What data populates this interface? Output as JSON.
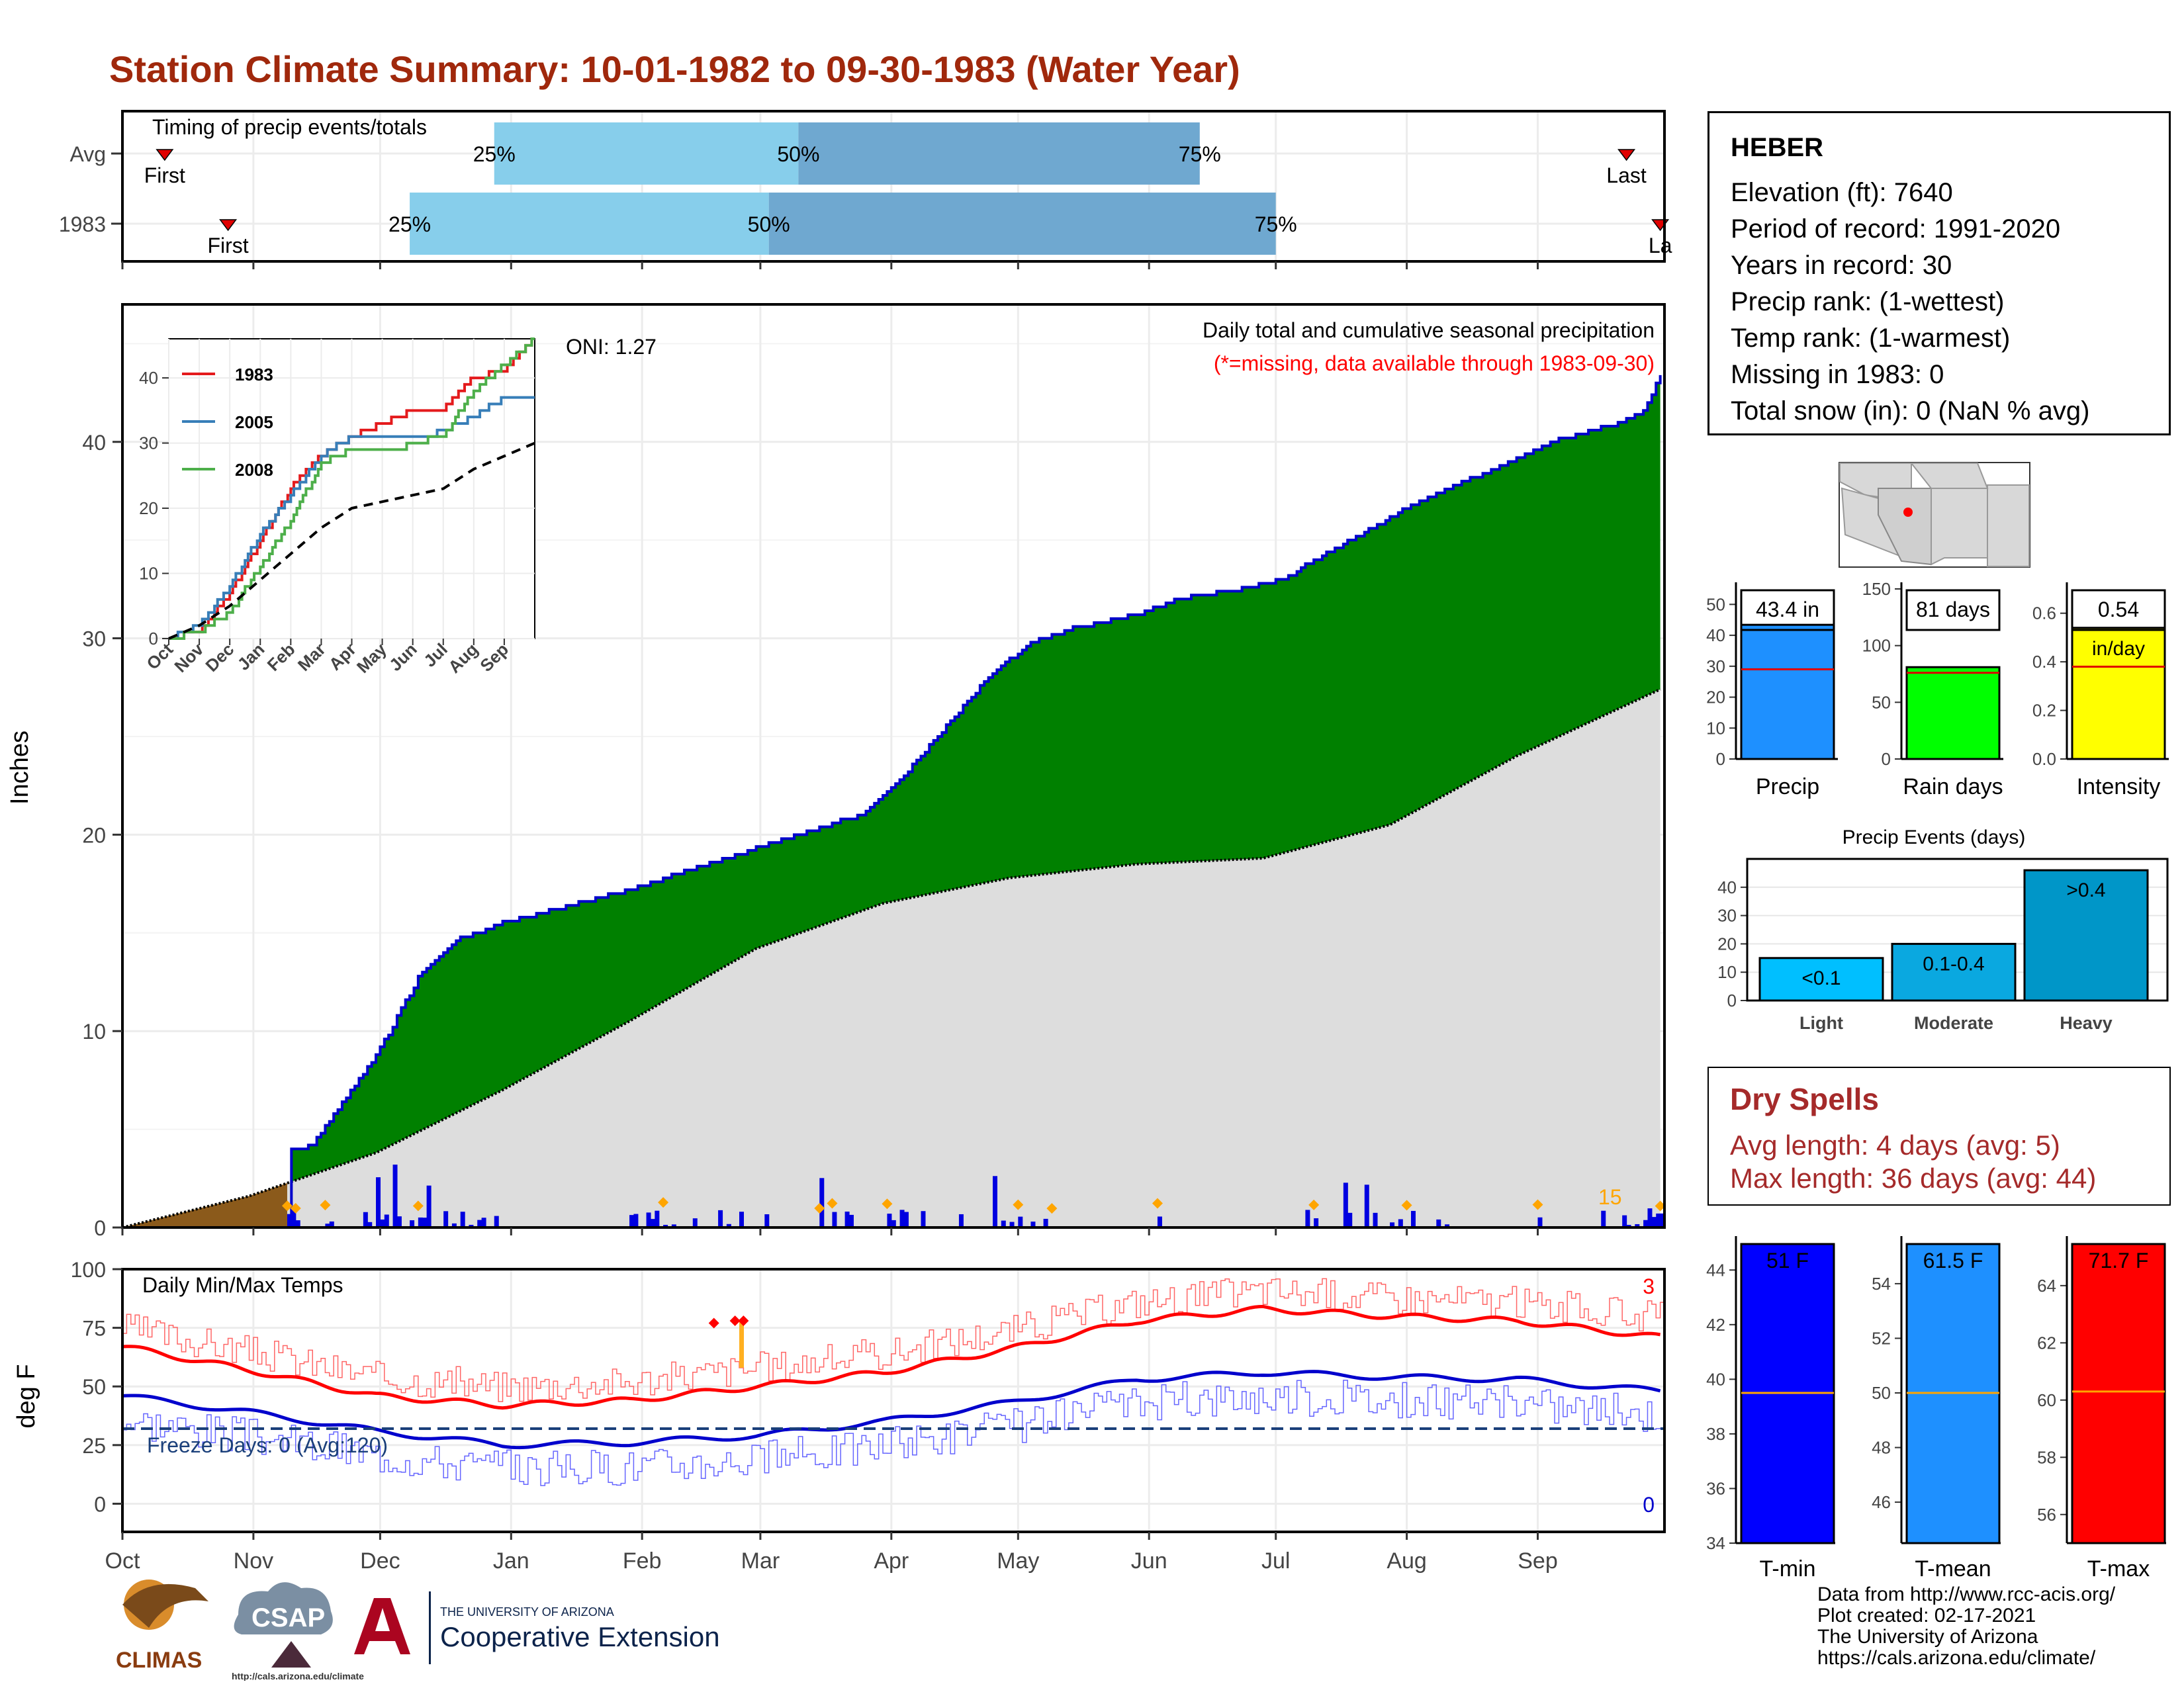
{
  "title": "Station Climate Summary: 10-01-1982 to 09-30-1983 (Water Year)",
  "colors": {
    "title": "#a0280c",
    "precip_cum": "#008000",
    "precip_line": "#0000cc",
    "normal_fill": "#dddddd",
    "tmax": "#ff0000",
    "tmin": "#0000cc",
    "quartile_light": "#87ceeb",
    "quartile_dark": "#6fa8d0",
    "dry_spells": "#a52a2a"
  },
  "timing_panel": {
    "title": "Timing of precip events/totals",
    "rows": [
      {
        "label": "Avg",
        "first_label": "First",
        "last_label": "Last",
        "first_day": 10,
        "last_day": 356,
        "p25_day": 88,
        "p50_day": 160,
        "p75_day": 255,
        "p25_label": "25%",
        "p50_label": "50%",
        "p75_label": "75%"
      },
      {
        "label": "1983",
        "first_label": "First",
        "last_label": "La",
        "first_day": 25,
        "last_day": 364,
        "p25_day": 68,
        "p50_day": 153,
        "p75_day": 273,
        "p25_label": "25%",
        "p50_label": "50%",
        "p75_label": "75%"
      }
    ]
  },
  "precip_panel": {
    "ylabel": "Inches",
    "title": "Daily total and cumulative seasonal precipitation",
    "subtitle": "(*=missing, data available through 1983-09-30)",
    "oni": "ONI: 1.27",
    "corner_value": "15",
    "y_ticks": [
      "0",
      "10",
      "20",
      "30",
      "40"
    ]
  },
  "month_labels": [
    "Oct",
    "Nov",
    "Dec",
    "Jan",
    "Feb",
    "Mar",
    "Apr",
    "May",
    "Jun",
    "Jul",
    "Aug",
    "Sep"
  ],
  "inset": {
    "y_ticks": [
      "0",
      "10",
      "20",
      "30",
      "40"
    ],
    "legend": [
      "1983",
      "2005",
      "2008"
    ],
    "x_labels": [
      "Oct",
      "Nov",
      "Dec",
      "Jan",
      "Feb",
      "Mar",
      "Apr",
      "May",
      "Jun",
      "Jul",
      "Aug",
      "Sep"
    ]
  },
  "temp_panel": {
    "ylabel": "deg F",
    "title": "Daily Min/Max Temps",
    "freeze_text": "Freeze Days: 0 (Avg:120)",
    "count_max": "3",
    "count_min": "0",
    "y_ticks": [
      "0",
      "25",
      "50",
      "75",
      "100"
    ]
  },
  "station": {
    "name": "HEBER",
    "lines": [
      "Elevation (ft): 7640",
      "Period of record: 1991-2020",
      "Years in record: 30",
      "Precip rank:  (1-wettest)",
      "Temp rank:  (1-warmest)",
      "Missing in 1983: 0",
      "Total snow (in): 0 (NaN % avg)"
    ]
  },
  "summary_bars": [
    {
      "label": "Precip",
      "value_text": "43.4 in",
      "value": 43.4,
      "avg": 29,
      "ymax": 55,
      "ticks": [
        "0",
        "10",
        "20",
        "30",
        "40",
        "50"
      ],
      "color": "#1e90ff"
    },
    {
      "label": "Rain days",
      "value_text": "81 days",
      "value": 81,
      "avg": 76,
      "ymax": 150,
      "ticks": [
        "0",
        "50",
        "100",
        "150"
      ],
      "color": "#00ff00"
    },
    {
      "label": "Intensity",
      "value_text": "0.54",
      "value_text2": "in/day",
      "value": 0.54,
      "avg": 0.38,
      "ymax": 0.7,
      "ticks": [
        "0.0",
        "0.2",
        "0.4",
        "0.6"
      ],
      "color": "#ffff00"
    }
  ],
  "events": {
    "title": "Precip Events (days)",
    "ticks": [
      "0",
      "10",
      "20",
      "30",
      "40"
    ],
    "bars": [
      {
        "label": "Light",
        "text": "<0.1",
        "value": 15,
        "color": "#00bfff"
      },
      {
        "label": "Moderate",
        "text": "0.1-0.4",
        "value": 20,
        "color": "#0aa8e0"
      },
      {
        "label": "Heavy",
        "text": ">0.4",
        "value": 46,
        "color": "#0096c8"
      }
    ]
  },
  "dry_spells": {
    "title": "Dry Spells",
    "avg_length": "Avg length: 4 days (avg: 5)",
    "max_length": "Max length: 36 days (avg: 44)"
  },
  "temp_bars": [
    {
      "label": "T-min",
      "value_text": "51 F",
      "value": 51,
      "avg": 39.5,
      "ymin": 34,
      "ymax": 45,
      "ticks": [
        "34",
        "36",
        "38",
        "40",
        "42",
        "44"
      ],
      "color": "#0000ff"
    },
    {
      "label": "T-mean",
      "value_text": "61.5 F",
      "value": 61.5,
      "avg": 50,
      "ymin": 44.5,
      "ymax": 55.5,
      "ticks": [
        "46",
        "48",
        "50",
        "52",
        "54"
      ],
      "color": "#1e90ff"
    },
    {
      "label": "T-max",
      "value_text": "71.7 F",
      "value": 71.7,
      "avg": 60.3,
      "ymin": 55,
      "ymax": 65.5,
      "ticks": [
        "56",
        "58",
        "60",
        "62",
        "64"
      ],
      "color": "#ff0000"
    }
  ],
  "credits": [
    "Data from http://www.rcc-acis.org/",
    "Plot created: 02-17-2021",
    "The University of Arizona",
    "https://cals.arizona.edu/climate/"
  ],
  "logos": {
    "climas": "CLIMAS",
    "csap": "CSAP",
    "csap_url": "http://cals.arizona.edu/climate",
    "ua_top": "THE UNIVERSITY OF ARIZONA",
    "ua_bottom": "Cooperative Extension"
  },
  "chart_data": [
    {
      "type": "area",
      "title": "Daily total and cumulative seasonal precipitation",
      "ylabel": "Inches",
      "xlabel": "",
      "x_unit": "day of water year",
      "ylim": [
        0,
        47
      ],
      "cumulative_1983": {
        "x": [
          0,
          39,
          40,
          45,
          50,
          60,
          70,
          80,
          85,
          90,
          120,
          170,
          175,
          185,
          195,
          205,
          215,
          225,
          240,
          250,
          265,
          275,
          280,
          295,
          305,
          320,
          340,
          355,
          360,
          364
        ],
        "y": [
          0,
          0,
          3.9,
          4.2,
          5.8,
          8.7,
          12.7,
          14.8,
          15.0,
          15.5,
          17.2,
          20.7,
          21.0,
          23.0,
          25.5,
          28.0,
          29.8,
          30.5,
          31.2,
          32.0,
          32.5,
          33.0,
          33.7,
          35.5,
          36.8,
          38.2,
          40.1,
          41.0,
          41.5,
          43.4
        ]
      },
      "normal_cumulative": {
        "x": [
          0,
          30,
          60,
          90,
          120,
          150,
          180,
          210,
          240,
          270,
          300,
          330,
          364
        ],
        "y": [
          0,
          1.6,
          3.8,
          7.0,
          10.5,
          14.2,
          16.5,
          17.8,
          18.5,
          18.8,
          20.5,
          24.0,
          27.4
        ]
      },
      "grid": true
    },
    {
      "type": "line",
      "title": "Daily Min/Max Temps",
      "ylabel": "deg F",
      "ylim": [
        -12,
        100
      ],
      "normal_max": {
        "x": [
          0,
          30,
          60,
          90,
          120,
          150,
          180,
          210,
          240,
          270,
          300,
          330,
          364
        ],
        "y": [
          67,
          57,
          46,
          42,
          44,
          50,
          56,
          66,
          78,
          83,
          80,
          78,
          71
        ]
      },
      "normal_min": {
        "x": [
          0,
          30,
          60,
          90,
          120,
          150,
          180,
          210,
          240,
          270,
          300,
          330,
          364
        ],
        "y": [
          46,
          39,
          31,
          25,
          26,
          29,
          35,
          43,
          53,
          56,
          54,
          53,
          48
        ]
      },
      "freeze_line": 32,
      "grid": true
    },
    {
      "type": "line",
      "title": "",
      "x_labels": [
        "Oct",
        "Nov",
        "Dec",
        "Jan",
        "Feb",
        "Mar",
        "Apr",
        "May",
        "Jun",
        "Jul",
        "Aug",
        "Sep"
      ],
      "ylim": [
        0,
        46
      ],
      "series": [
        {
          "name": "1983",
          "color": "#e41a1c",
          "x": [
            0,
            1,
            2,
            3,
            4,
            5,
            6,
            7,
            8,
            9,
            10,
            11,
            12
          ],
          "y": [
            0,
            1,
            7,
            15,
            23,
            28,
            31,
            33,
            35,
            35,
            40,
            41,
            46
          ]
        },
        {
          "name": "2005",
          "color": "#377eb8",
          "x": [
            0,
            1,
            2,
            3,
            4,
            5,
            6,
            7,
            8,
            9,
            10,
            11,
            12
          ],
          "y": [
            0,
            2,
            8,
            16,
            22,
            28,
            31,
            30,
            30,
            32,
            34,
            37,
            36
          ]
        },
        {
          "name": "2008",
          "color": "#4daf4a",
          "x": [
            0,
            1,
            2,
            3,
            4,
            5,
            6,
            7,
            8,
            9,
            10,
            11,
            12
          ],
          "y": [
            0,
            1,
            4,
            11,
            18,
            27,
            29,
            28,
            30,
            31,
            38,
            42,
            46
          ]
        },
        {
          "x": [
            0,
            1,
            2,
            3,
            4,
            5,
            6,
            7,
            8,
            9,
            10,
            11,
            12
          ],
          "y": [
            0,
            2,
            5,
            9,
            13,
            17,
            20,
            21,
            22,
            23,
            26,
            28,
            30
          ]
        }
      ]
    }
  ]
}
